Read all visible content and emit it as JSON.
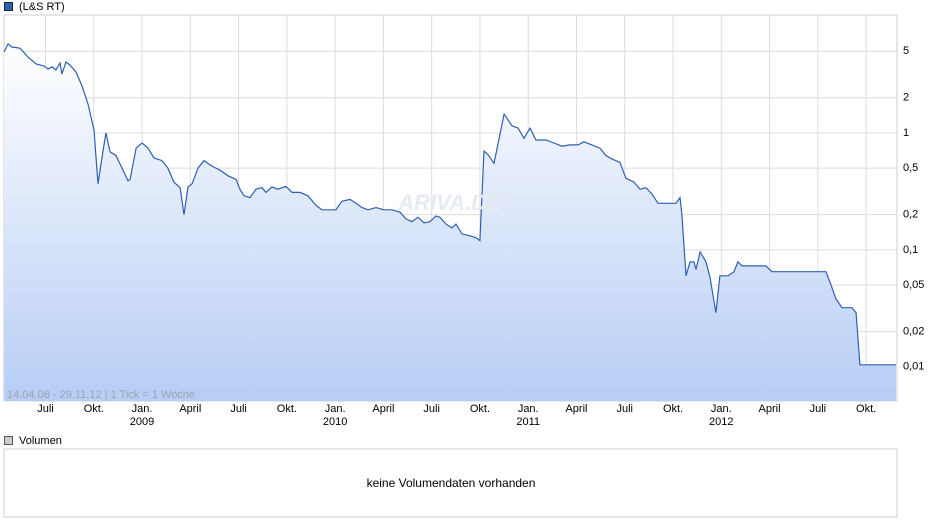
{
  "chart_data": {
    "type": "line",
    "log_y": true,
    "grid": true,
    "period_note": "14.04.08 - 29.11.12 | 1 Tick = 1 Woche",
    "watermark": "ARIVA.DE",
    "volume_title": "Volumen",
    "volume_note": "keine Volumendaten vorhanden",
    "xlim": [
      2008.285,
      2012.91
    ],
    "ylim": [
      0.0051,
      10.2
    ],
    "yticks": [
      {
        "value": 0.01,
        "label": "0,01"
      },
      {
        "value": 0.02,
        "label": "0,02"
      },
      {
        "value": 0.05,
        "label": "0,05"
      },
      {
        "value": 0.1,
        "label": "0,1"
      },
      {
        "value": 0.2,
        "label": "0,2"
      },
      {
        "value": 0.5,
        "label": "0,5"
      },
      1,
      2,
      5
    ],
    "xticks": [
      {
        "value": 2008.5,
        "label": "Juli"
      },
      {
        "value": 2008.75,
        "label": "Okt."
      },
      {
        "value": 2009.0,
        "label": "Jan."
      },
      {
        "value": 2009.25,
        "label": "April"
      },
      {
        "value": 2009.5,
        "label": "Juli"
      },
      {
        "value": 2009.75,
        "label": "Okt."
      },
      {
        "value": 2010.0,
        "label": "Jan."
      },
      {
        "value": 2010.25,
        "label": "April"
      },
      {
        "value": 2010.5,
        "label": "Juli"
      },
      {
        "value": 2010.75,
        "label": "Okt."
      },
      {
        "value": 2011.0,
        "label": "Jan."
      },
      {
        "value": 2011.25,
        "label": "April"
      },
      {
        "value": 2011.5,
        "label": "Juli"
      },
      {
        "value": 2011.75,
        "label": "Okt."
      },
      {
        "value": 2012.0,
        "label": "Jan."
      },
      {
        "value": 2012.25,
        "label": "April"
      },
      {
        "value": 2012.5,
        "label": "Juli"
      },
      {
        "value": 2012.75,
        "label": "Okt."
      }
    ],
    "year_ticks": [
      2009,
      2010,
      2011,
      2012
    ],
    "series": [
      {
        "name": "(L&S RT)",
        "color": "#2f5fb3",
        "x": [
          2008.285,
          2008.306,
          2008.326,
          2008.368,
          2008.409,
          2008.451,
          2008.492,
          2008.513,
          2008.534,
          2008.554,
          2008.575,
          2008.585,
          2008.606,
          2008.627,
          2008.658,
          2008.689,
          2008.72,
          2008.751,
          2008.772,
          2008.793,
          2008.813,
          2008.834,
          2008.865,
          2008.896,
          2008.927,
          2008.938,
          2008.969,
          2009.0,
          2009.031,
          2009.062,
          2009.103,
          2009.134,
          2009.165,
          2009.197,
          2009.217,
          2009.238,
          2009.259,
          2009.29,
          2009.321,
          2009.362,
          2009.404,
          2009.445,
          2009.487,
          2009.507,
          2009.528,
          2009.559,
          2009.59,
          2009.621,
          2009.642,
          2009.673,
          2009.704,
          2009.745,
          2009.777,
          2009.818,
          2009.859,
          2009.901,
          2009.932,
          2009.973,
          2010.004,
          2010.035,
          2010.077,
          2010.108,
          2010.139,
          2010.17,
          2010.212,
          2010.253,
          2010.294,
          2010.336,
          2010.367,
          2010.398,
          2010.429,
          2010.46,
          2010.491,
          2010.522,
          2010.543,
          2010.574,
          2010.605,
          2010.626,
          2010.657,
          2010.698,
          2010.729,
          2010.75,
          2010.771,
          2010.792,
          2010.823,
          2010.875,
          2010.916,
          2010.947,
          2010.978,
          2011.009,
          2011.04,
          2011.092,
          2011.133,
          2011.175,
          2011.216,
          2011.258,
          2011.289,
          2011.33,
          2011.372,
          2011.403,
          2011.434,
          2011.475,
          2011.506,
          2011.548,
          2011.579,
          2011.61,
          2011.641,
          2011.672,
          2011.724,
          2011.765,
          2011.786,
          2011.796,
          2011.817,
          2011.838,
          2011.858,
          2011.869,
          2011.89,
          2011.921,
          2011.941,
          2011.972,
          2011.993,
          2012.035,
          2012.066,
          2012.086,
          2012.107,
          2012.159,
          2012.231,
          2012.262,
          2012.356,
          2012.542,
          2012.563,
          2012.594,
          2012.625,
          2012.677,
          2012.698,
          2012.718,
          2012.905
        ],
        "values": [
          4.92,
          5.77,
          5.43,
          5.3,
          4.46,
          3.89,
          3.74,
          3.52,
          3.67,
          3.45,
          3.97,
          3.19,
          4.04,
          3.8,
          3.32,
          2.52,
          1.77,
          1.06,
          0.367,
          0.624,
          1.0,
          0.69,
          0.64,
          0.5,
          0.39,
          0.4,
          0.74,
          0.82,
          0.74,
          0.61,
          0.58,
          0.5,
          0.38,
          0.34,
          0.2,
          0.345,
          0.367,
          0.5,
          0.58,
          0.52,
          0.48,
          0.43,
          0.4,
          0.33,
          0.29,
          0.28,
          0.33,
          0.34,
          0.31,
          0.345,
          0.33,
          0.35,
          0.31,
          0.31,
          0.29,
          0.24,
          0.22,
          0.22,
          0.22,
          0.26,
          0.27,
          0.25,
          0.23,
          0.22,
          0.23,
          0.22,
          0.22,
          0.21,
          0.184,
          0.174,
          0.19,
          0.17,
          0.174,
          0.195,
          0.19,
          0.166,
          0.154,
          0.166,
          0.137,
          0.132,
          0.127,
          0.12,
          0.7,
          0.65,
          0.55,
          1.45,
          1.15,
          1.1,
          0.9,
          1.1,
          0.87,
          0.87,
          0.82,
          0.77,
          0.79,
          0.79,
          0.84,
          0.79,
          0.74,
          0.64,
          0.6,
          0.56,
          0.41,
          0.38,
          0.33,
          0.34,
          0.3,
          0.25,
          0.25,
          0.25,
          0.28,
          0.2,
          0.06,
          0.079,
          0.079,
          0.068,
          0.096,
          0.079,
          0.059,
          0.029,
          0.06,
          0.06,
          0.065,
          0.079,
          0.073,
          0.073,
          0.073,
          0.065,
          0.065,
          0.065,
          0.053,
          0.038,
          0.032,
          0.032,
          0.029,
          0.0104,
          0.0104
        ]
      }
    ]
  }
}
